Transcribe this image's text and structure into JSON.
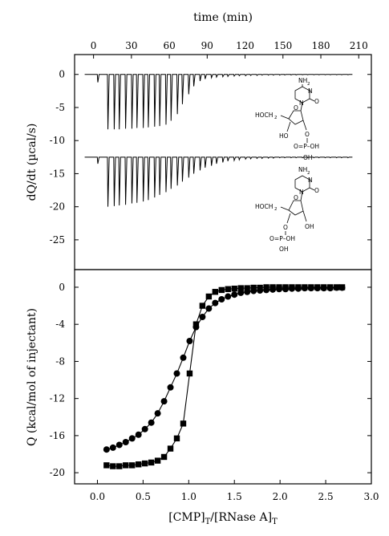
{
  "chart_data": [
    {
      "type": "line",
      "panel": "thermogram",
      "xlabel": "time (min)",
      "ylabel": "dQ/dt (µcal/s)",
      "xlim": [
        -15,
        220
      ],
      "ylim": [
        -29.5,
        3
      ],
      "xticks": [
        0,
        30,
        60,
        90,
        120,
        150,
        180,
        210
      ],
      "yticks": [
        0,
        -5,
        -10,
        -15,
        -20,
        -25
      ],
      "series": [
        {
          "baseline": 0,
          "injection_times": [
            3,
            11,
            16,
            20,
            25,
            30,
            34,
            39,
            43,
            48,
            52,
            57,
            61,
            66,
            70,
            75,
            79,
            84,
            88,
            93,
            97,
            102,
            106,
            111,
            115,
            120,
            124,
            129,
            133,
            138,
            142,
            147,
            151,
            156,
            160,
            165,
            169,
            174,
            178,
            183,
            187,
            192,
            196,
            201
          ],
          "peak_values": [
            -1.2,
            -8.3,
            -8.3,
            -8.3,
            -8.2,
            -8.2,
            -8.1,
            -8.1,
            -8.0,
            -7.9,
            -7.8,
            -7.6,
            -7.0,
            -6.0,
            -4.5,
            -3.0,
            -1.8,
            -1.0,
            -0.7,
            -0.5,
            -0.4,
            -0.35,
            -0.3,
            -0.25,
            -0.2,
            -0.2,
            -0.15,
            -0.15,
            -0.1,
            -0.1,
            -0.1,
            -0.1,
            -0.08,
            -0.08,
            -0.08,
            -0.05,
            -0.05,
            -0.05,
            -0.05,
            -0.05,
            -0.05,
            -0.05,
            -0.05,
            -0.05
          ]
        },
        {
          "baseline": -12.5,
          "injection_times": [
            3,
            11,
            16,
            20,
            25,
            30,
            34,
            39,
            43,
            48,
            52,
            57,
            61,
            66,
            70,
            75,
            79,
            84,
            88,
            93,
            97,
            102,
            106,
            111,
            115,
            120,
            124,
            129,
            133,
            138,
            142,
            147,
            151,
            156,
            160,
            165,
            169,
            174,
            178,
            183,
            187,
            192,
            196,
            201
          ],
          "peak_values": [
            -13.5,
            -20.0,
            -19.9,
            -19.8,
            -19.7,
            -19.5,
            -19.4,
            -19.2,
            -19.0,
            -18.6,
            -18.2,
            -17.8,
            -17.3,
            -16.8,
            -16.2,
            -15.6,
            -15.0,
            -14.5,
            -14.1,
            -13.8,
            -13.5,
            -13.3,
            -13.1,
            -13.0,
            -12.9,
            -12.8,
            -12.75,
            -12.7,
            -12.7,
            -12.65,
            -12.65,
            -12.6,
            -12.6,
            -12.6,
            -12.6,
            -12.6,
            -12.6,
            -12.6,
            -12.6,
            -12.6,
            -12.6,
            -12.6,
            -12.6,
            -12.6
          ]
        }
      ],
      "structure_labels": {
        "top": {
          "amine": "NH",
          "amine_sub": "2",
          "n1": "N",
          "n2": "N",
          "carbonyl": "O",
          "sugar_o": "O",
          "hoch": "HOCH",
          "hoch_sub": "2",
          "oh_a": "HO",
          "o_b": "O",
          "p": "O=P–OH",
          "p_oh": "OH"
        },
        "bottom": {
          "amine": "NH",
          "amine_sub": "2",
          "n1": "N",
          "n2": "N",
          "carbonyl": "O",
          "sugar_o": "O",
          "hoch": "HOCH",
          "hoch_sub": "2",
          "oh_a": "OH",
          "o_b": "O",
          "p": "O=P–OH",
          "p_oh": "OH"
        }
      }
    },
    {
      "type": "scatter",
      "panel": "binding isotherm",
      "xlabel_main": "[CMP]",
      "xlabel_sub1": "T",
      "xlabel_mid": "/[RNase A]",
      "xlabel_sub2": "T",
      "ylabel": "Q (kcal/mol of injectant)",
      "xlim": [
        -0.25,
        3.0
      ],
      "ylim": [
        -21.2,
        1.9
      ],
      "xticks": [
        0.0,
        0.5,
        1.0,
        1.5,
        2.0,
        2.5,
        3.0
      ],
      "xtick_labels": [
        "0.0",
        "0.5",
        "1.0",
        "1.5",
        "2.0",
        "2.5",
        "3.0"
      ],
      "yticks": [
        0,
        -4,
        -8,
        -12,
        -16,
        -20
      ],
      "series": [
        {
          "marker": "circle",
          "x": [
            0.1,
            0.17,
            0.24,
            0.31,
            0.38,
            0.45,
            0.52,
            0.59,
            0.66,
            0.73,
            0.8,
            0.87,
            0.94,
            1.01,
            1.08,
            1.15,
            1.22,
            1.29,
            1.36,
            1.43,
            1.5,
            1.57,
            1.64,
            1.71,
            1.78,
            1.85,
            1.92,
            1.99,
            2.06,
            2.13,
            2.2,
            2.27,
            2.34,
            2.41,
            2.48,
            2.55,
            2.62,
            2.68
          ],
          "y": [
            -17.5,
            -17.3,
            -17.0,
            -16.7,
            -16.3,
            -15.9,
            -15.3,
            -14.6,
            -13.6,
            -12.3,
            -10.8,
            -9.3,
            -7.6,
            -5.8,
            -4.3,
            -3.2,
            -2.3,
            -1.7,
            -1.3,
            -1.0,
            -0.8,
            -0.6,
            -0.5,
            -0.4,
            -0.35,
            -0.3,
            -0.25,
            -0.2,
            -0.2,
            -0.15,
            -0.15,
            -0.1,
            -0.1,
            -0.1,
            -0.1,
            -0.1,
            -0.05,
            -0.05
          ]
        },
        {
          "marker": "square",
          "x": [
            0.1,
            0.17,
            0.24,
            0.31,
            0.38,
            0.45,
            0.52,
            0.59,
            0.66,
            0.73,
            0.8,
            0.87,
            0.94,
            1.01,
            1.08,
            1.15,
            1.22,
            1.29,
            1.36,
            1.43,
            1.5,
            1.57,
            1.64,
            1.71,
            1.78,
            1.85,
            1.92,
            1.99,
            2.06,
            2.13,
            2.2,
            2.27,
            2.34,
            2.41,
            2.48,
            2.55,
            2.62,
            2.68
          ],
          "y": [
            -19.2,
            -19.3,
            -19.3,
            -19.2,
            -19.2,
            -19.1,
            -19.0,
            -18.9,
            -18.7,
            -18.3,
            -17.4,
            -16.3,
            -14.7,
            -9.3,
            -4.0,
            -2.0,
            -1.0,
            -0.5,
            -0.3,
            -0.2,
            -0.15,
            -0.1,
            -0.1,
            -0.05,
            -0.05,
            0.0,
            0.0,
            0.0,
            0.0,
            0.0,
            0.0,
            0.0,
            0.0,
            0.0,
            0.0,
            0.0,
            0.0,
            0.0
          ]
        }
      ]
    }
  ]
}
